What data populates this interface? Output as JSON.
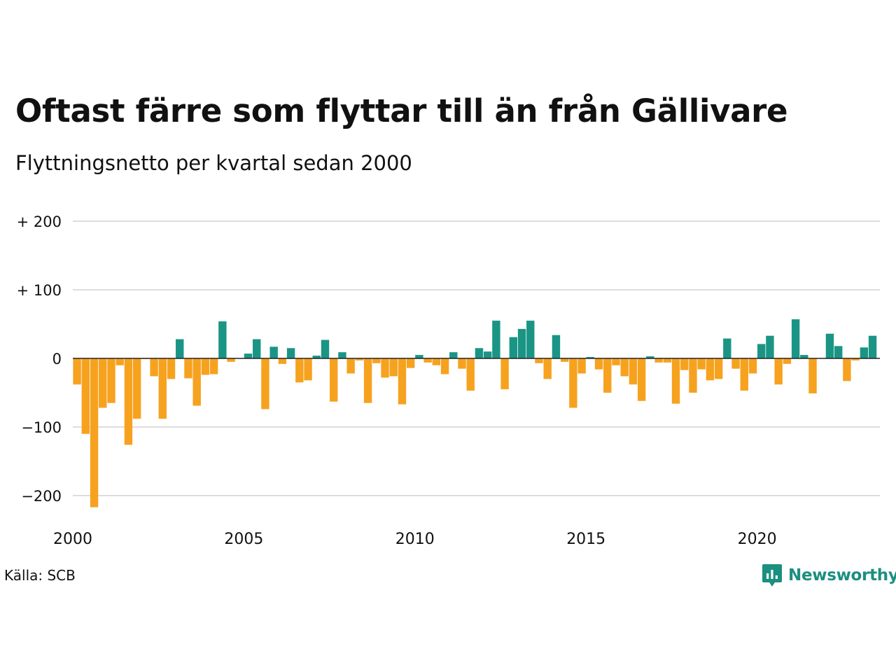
{
  "header": {
    "title": "Oftast färre som flyttar till än från Gällivare",
    "subtitle": "Flyttningsnetto per kvartal sedan 2000"
  },
  "footer": {
    "source": "Källa: SCB",
    "brand": "Newsworthy"
  },
  "colors": {
    "positive": "#1a9585",
    "negative": "#f6a21f",
    "grid": "#dddddd",
    "zero_line": "#222222",
    "brand": "#1b8f80"
  },
  "chart_data": {
    "type": "bar",
    "title": "Oftast färre som flyttar till än från Gällivare",
    "subtitle": "Flyttningsnetto per kvartal sedan 2000",
    "xlabel": "",
    "ylabel": "",
    "ylim": [
      -220,
      200
    ],
    "grid": true,
    "legend": "none",
    "y_ticks": [
      {
        "value": 200,
        "label": "+ 200"
      },
      {
        "value": 100,
        "label": "+ 100"
      },
      {
        "value": 0,
        "label": "0"
      },
      {
        "value": -100,
        "label": "−100"
      },
      {
        "value": -200,
        "label": "−200"
      }
    ],
    "x_ticks": [
      "2000",
      "2005",
      "2010",
      "2015",
      "2020"
    ],
    "start_year": 2000,
    "values": [
      -38,
      -110,
      -217,
      -72,
      -65,
      -10,
      -126,
      -88,
      -1,
      -26,
      -88,
      -30,
      28,
      -29,
      -69,
      -24,
      -23,
      54,
      -5,
      0,
      7,
      28,
      -74,
      17,
      -8,
      15,
      -35,
      -32,
      4,
      27,
      -63,
      9,
      -22,
      -3,
      -65,
      -7,
      -28,
      -26,
      -67,
      -14,
      5,
      -6,
      -10,
      -23,
      9,
      -15,
      -47,
      15,
      10,
      55,
      -45,
      31,
      43,
      55,
      -7,
      -30,
      34,
      -5,
      -72,
      -22,
      2,
      -16,
      -50,
      -10,
      -26,
      -38,
      -62,
      3,
      -6,
      -6,
      -66,
      -17,
      -50,
      -16,
      -32,
      -30,
      29,
      -15,
      -47,
      -22,
      21,
      33,
      -38,
      -8,
      57,
      5,
      -51,
      0,
      36,
      18,
      -33,
      -3,
      16,
      33
    ]
  }
}
